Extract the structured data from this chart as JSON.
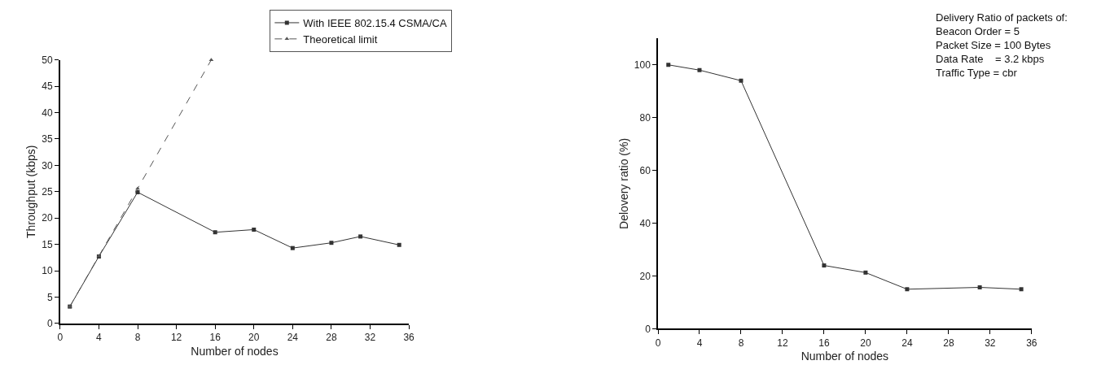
{
  "chart_data": [
    {
      "type": "line",
      "xlabel": "Number of nodes",
      "ylabel": "Throughput (kbps)",
      "xlim": [
        0,
        36
      ],
      "xticks": [
        0,
        4,
        8,
        12,
        16,
        20,
        24,
        28,
        32,
        36
      ],
      "ylim": [
        0,
        50
      ],
      "yticks": [
        0,
        5,
        10,
        15,
        20,
        25,
        30,
        35,
        40,
        45,
        50
      ],
      "legend": "top right",
      "series": [
        {
          "name": "With IEEE 802.15.4 CSMA/CA",
          "color": "#333333",
          "x": [
            1,
            4,
            8,
            16,
            20,
            24,
            28,
            31,
            35
          ],
          "values": [
            3.2,
            12.7,
            24.9,
            17.3,
            17.8,
            14.3,
            15.3,
            16.5,
            14.9
          ],
          "marker": "square",
          "line_style": "solid"
        },
        {
          "name": "Theoretical limit",
          "color": "#555555",
          "x": [
            1,
            4,
            8,
            15.6
          ],
          "values": [
            3.2,
            12.8,
            25.6,
            50
          ],
          "marker": "triangle",
          "line_style": "dashed"
        }
      ]
    },
    {
      "type": "line",
      "xlabel": "Number of nodes",
      "ylabel": "Delovery ratio (%)",
      "xlim": [
        0,
        36
      ],
      "xticks": [
        0,
        4,
        8,
        12,
        16,
        20,
        24,
        28,
        32,
        36
      ],
      "ylim": [
        0,
        110
      ],
      "yticks": [
        0,
        20,
        40,
        60,
        80,
        100
      ],
      "annotations": [
        "Delivery Ratio of packets of:\nBeacon Order = 5\nPacket Size = 100 Bytes\nData Rate    = 3.2 kbps\nTraffic Type = cbr"
      ],
      "series": [
        {
          "color": "#333333",
          "x": [
            1,
            4,
            8,
            16,
            20,
            24,
            31,
            35
          ],
          "values": [
            100,
            98,
            94,
            24,
            21.3,
            15,
            15.7,
            15
          ],
          "marker": "square",
          "line_style": "solid"
        }
      ]
    }
  ]
}
